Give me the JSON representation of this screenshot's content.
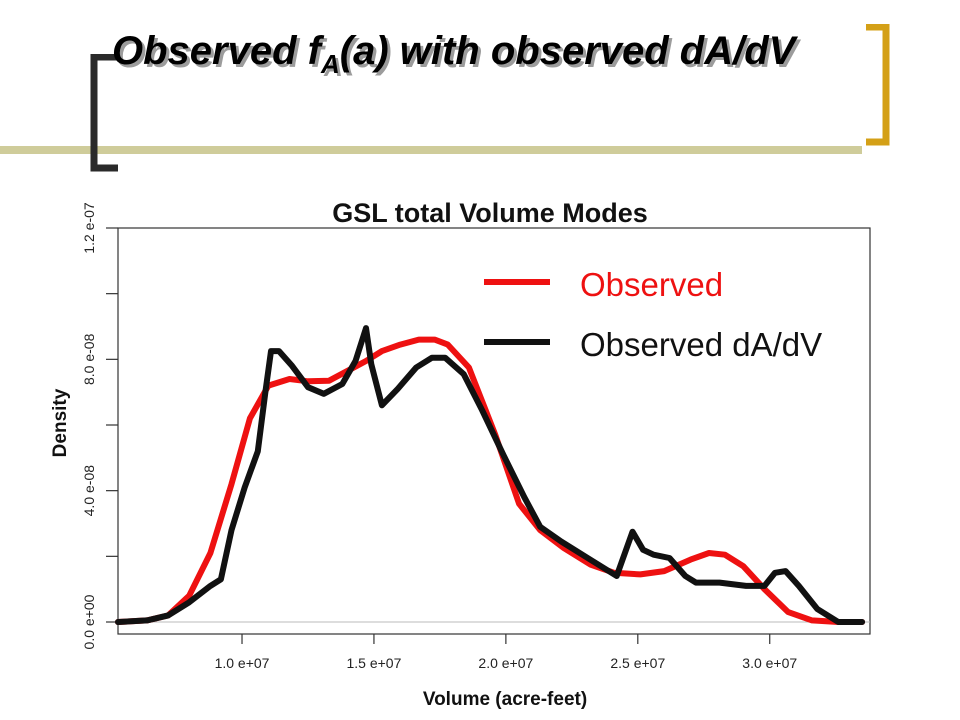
{
  "slide": {
    "title_pre": "Observed f",
    "title_sub": "A",
    "title_post": "(a) with observed dA/dV",
    "accent_color": "#cfcc9a",
    "bracket_color": "#d4a017"
  },
  "chart_data": {
    "type": "line",
    "title": "GSL total Volume Modes",
    "xlabel": "Volume (acre-feet)",
    "ylabel": "Density",
    "xlim": [
      5300000,
      33800000
    ],
    "ylim": [
      0,
      1.2e-07
    ],
    "x_ticks": [
      10000000,
      15000000,
      20000000,
      25000000,
      30000000
    ],
    "x_tick_labels": [
      "1.0 e+07",
      "1.5 e+07",
      "2.0 e+07",
      "2.5 e+07",
      "3.0 e+07"
    ],
    "y_ticks": [
      0,
      4e-08,
      8e-08,
      1.2e-07
    ],
    "y_minor_ticks": [
      2e-08,
      6e-08,
      1e-07
    ],
    "y_tick_labels": [
      "0.0 e+00",
      "4.0 e-08",
      "8.0 e-08",
      "1.2 e-07"
    ],
    "legend_position": "top-right",
    "series": [
      {
        "name": "Observed",
        "color": "#ee1111",
        "x": [
          5300000,
          6400000,
          7200000,
          8000000,
          8800000,
          9600000,
          10300000,
          11000000,
          11800000,
          12500000,
          13300000,
          14000000,
          14700000,
          15300000,
          16000000,
          16700000,
          17300000,
          17800000,
          18600000,
          19600000,
          20500000,
          21300000,
          22200000,
          23200000,
          24100000,
          25100000,
          26000000,
          27000000,
          27700000,
          28300000,
          29000000,
          29800000,
          30700000,
          31600000,
          32600000,
          33500000
        ],
        "y": [
          0,
          5e-10,
          2e-09,
          8e-09,
          2.1e-08,
          4.2e-08,
          6.2e-08,
          7.2e-08,
          7.4e-08,
          7.33e-08,
          7.35e-08,
          7.65e-08,
          7.95e-08,
          8.25e-08,
          8.45e-08,
          8.6e-08,
          8.6e-08,
          8.45e-08,
          7.75e-08,
          5.7e-08,
          3.6e-08,
          2.8e-08,
          2.25e-08,
          1.75e-08,
          1.5e-08,
          1.45e-08,
          1.55e-08,
          1.9e-08,
          2.1e-08,
          2.05e-08,
          1.7e-08,
          1e-08,
          3e-09,
          5e-10,
          0,
          0
        ]
      },
      {
        "name": "Observed dA/dV",
        "color": "#111111",
        "x": [
          5300000,
          6400000,
          7200000,
          8000000,
          8800000,
          9200000,
          9600000,
          10100000,
          10600000,
          10900000,
          11100000,
          11400000,
          11900000,
          12500000,
          13100000,
          13800000,
          14300000,
          14700000,
          14900000,
          15300000,
          15900000,
          16600000,
          17200000,
          17700000,
          18400000,
          19100000,
          19900000,
          20700000,
          21300000,
          22100000,
          23100000,
          24200000,
          24800000,
          25200000,
          25600000,
          26200000,
          26800000,
          27200000,
          28100000,
          29100000,
          29800000,
          30200000,
          30600000,
          31100000,
          31800000,
          32600000,
          33500000
        ],
        "y": [
          0,
          5e-10,
          2e-09,
          6e-09,
          1.1e-08,
          1.3e-08,
          2.8e-08,
          4.1e-08,
          5.2e-08,
          7.1e-08,
          8.25e-08,
          8.25e-08,
          7.8e-08,
          7.15e-08,
          6.95e-08,
          7.25e-08,
          7.95e-08,
          8.95e-08,
          7.85e-08,
          6.6e-08,
          7.1e-08,
          7.75e-08,
          8.05e-08,
          8.05e-08,
          7.55e-08,
          6.45e-08,
          5.1e-08,
          3.8e-08,
          2.9e-08,
          2.45e-08,
          1.95e-08,
          1.4e-08,
          2.75e-08,
          2.2e-08,
          2.05e-08,
          1.95e-08,
          1.4e-08,
          1.2e-08,
          1.2e-08,
          1.1e-08,
          1.1e-08,
          1.5e-08,
          1.55e-08,
          1.1e-08,
          4e-09,
          0,
          0
        ]
      }
    ]
  }
}
